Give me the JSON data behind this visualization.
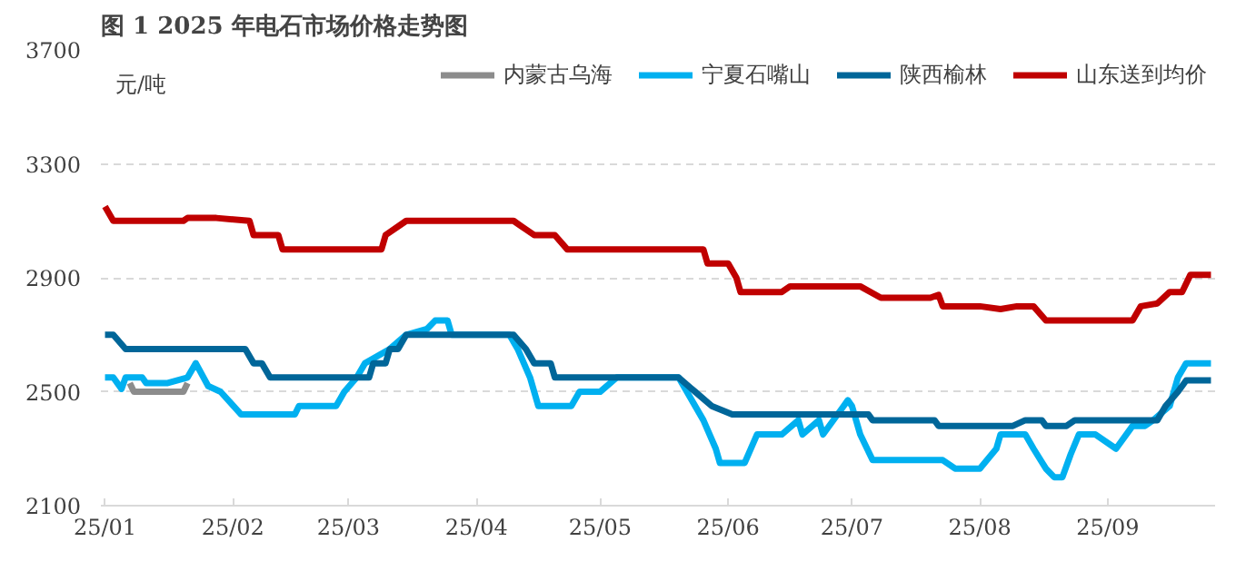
{
  "chart_data": {
    "type": "line",
    "title": "图 1 2025 年电石市场价格走势图",
    "ylabel": "元/吨",
    "xlim": [
      "2024-12-31",
      "2025-09-27"
    ],
    "xticks": [
      {
        "value": "2025-01-01",
        "label": "25/01"
      },
      {
        "value": "2025-02-01",
        "label": "25/02"
      },
      {
        "value": "2025-03-01",
        "label": "25/03"
      },
      {
        "value": "2025-04-01",
        "label": "25/04"
      },
      {
        "value": "2025-05-01",
        "label": "25/05"
      },
      {
        "value": "2025-06-01",
        "label": "25/06"
      },
      {
        "value": "2025-07-01",
        "label": "25/07"
      },
      {
        "value": "2025-08-01",
        "label": "25/08"
      },
      {
        "value": "2025-09-01",
        "label": "25/09"
      }
    ],
    "ylim": [
      2100,
      3700
    ],
    "yticks": [
      2100,
      2500,
      2900,
      3300,
      3700
    ],
    "grid": "y",
    "legend": "top",
    "line_style": "solid",
    "marker": "none",
    "series": [
      {
        "name": "内蒙古乌海",
        "color": "#8c8c8c",
        "x": [
          "2025-01-07",
          "2025-01-08",
          "2025-01-20",
          "2025-01-21"
        ],
        "values": [
          2530,
          2500,
          2500,
          2530
        ]
      },
      {
        "name": "宁夏石嘴山",
        "color": "#00b0f0",
        "x": [
          "2025-01-01",
          "2025-01-03",
          "2025-01-05",
          "2025-01-06",
          "2025-01-10",
          "2025-01-11",
          "2025-01-16",
          "2025-01-21",
          "2025-01-23",
          "2025-01-26",
          "2025-01-29",
          "2025-02-03",
          "2025-02-16",
          "2025-02-17",
          "2025-02-26",
          "2025-02-28",
          "2025-03-03",
          "2025-03-05",
          "2025-03-11",
          "2025-03-15",
          "2025-03-20",
          "2025-03-22",
          "2025-03-25",
          "2025-03-26",
          "2025-04-09",
          "2025-04-11",
          "2025-04-14",
          "2025-04-16",
          "2025-04-24",
          "2025-04-26",
          "2025-05-01",
          "2025-05-05",
          "2025-05-20",
          "2025-05-22",
          "2025-05-26",
          "2025-05-29",
          "2025-05-30",
          "2025-06-05",
          "2025-06-08",
          "2025-06-14",
          "2025-06-18",
          "2025-06-19",
          "2025-06-23",
          "2025-06-24",
          "2025-06-29",
          "2025-06-30",
          "2025-07-01",
          "2025-07-03",
          "2025-07-06",
          "2025-07-23",
          "2025-07-26",
          "2025-08-01",
          "2025-08-05",
          "2025-08-06",
          "2025-08-12",
          "2025-08-14",
          "2025-08-17",
          "2025-08-19",
          "2025-08-21",
          "2025-08-23",
          "2025-08-25",
          "2025-08-29",
          "2025-09-03",
          "2025-09-07",
          "2025-09-10",
          "2025-09-12",
          "2025-09-16",
          "2025-09-18",
          "2025-09-20",
          "2025-09-26"
        ],
        "values": [
          2550,
          2550,
          2510,
          2550,
          2550,
          2530,
          2530,
          2550,
          2600,
          2520,
          2500,
          2420,
          2420,
          2450,
          2450,
          2500,
          2550,
          2600,
          2650,
          2700,
          2720,
          2750,
          2750,
          2700,
          2700,
          2650,
          2550,
          2450,
          2450,
          2500,
          2500,
          2550,
          2550,
          2500,
          2400,
          2300,
          2250,
          2250,
          2350,
          2350,
          2400,
          2350,
          2400,
          2350,
          2450,
          2470,
          2450,
          2350,
          2260,
          2260,
          2230,
          2230,
          2300,
          2350,
          2350,
          2300,
          2230,
          2200,
          2200,
          2280,
          2350,
          2350,
          2300,
          2380,
          2380,
          2400,
          2450,
          2550,
          2600,
          2600
        ]
      },
      {
        "name": "陕西榆林",
        "color": "#006699",
        "x": [
          "2025-01-01",
          "2025-01-03",
          "2025-01-06",
          "2025-02-04",
          "2025-02-06",
          "2025-02-08",
          "2025-02-10",
          "2025-03-06",
          "2025-03-07",
          "2025-03-10",
          "2025-03-11",
          "2025-03-13",
          "2025-03-15",
          "2025-04-10",
          "2025-04-13",
          "2025-04-15",
          "2025-04-19",
          "2025-04-20",
          "2025-05-20",
          "2025-05-24",
          "2025-05-28",
          "2025-06-02",
          "2025-07-05",
          "2025-07-06",
          "2025-07-21",
          "2025-07-22",
          "2025-08-09",
          "2025-08-12",
          "2025-08-16",
          "2025-08-17",
          "2025-08-22",
          "2025-08-24",
          "2025-09-13",
          "2025-09-15",
          "2025-09-18",
          "2025-09-20",
          "2025-09-26"
        ],
        "values": [
          2700,
          2700,
          2650,
          2650,
          2600,
          2600,
          2550,
          2550,
          2600,
          2600,
          2650,
          2650,
          2700,
          2700,
          2650,
          2600,
          2600,
          2550,
          2550,
          2500,
          2450,
          2420,
          2420,
          2400,
          2400,
          2380,
          2380,
          2400,
          2400,
          2380,
          2380,
          2400,
          2400,
          2450,
          2500,
          2540,
          2540
        ]
      },
      {
        "name": "山东送到均价",
        "color": "#c00000",
        "x": [
          "2025-01-01",
          "2025-01-03",
          "2025-01-20",
          "2025-01-21",
          "2025-01-28",
          "2025-02-05",
          "2025-02-06",
          "2025-02-12",
          "2025-02-13",
          "2025-03-09",
          "2025-03-10",
          "2025-03-15",
          "2025-04-10",
          "2025-04-12",
          "2025-04-15",
          "2025-04-20",
          "2025-04-23",
          "2025-05-26",
          "2025-05-27",
          "2025-06-01",
          "2025-06-03",
          "2025-06-04",
          "2025-06-14",
          "2025-06-16",
          "2025-07-03",
          "2025-07-08",
          "2025-07-20",
          "2025-07-22",
          "2025-07-23",
          "2025-08-01",
          "2025-08-06",
          "2025-08-10",
          "2025-08-14",
          "2025-08-17",
          "2025-09-07",
          "2025-09-09",
          "2025-09-13",
          "2025-09-16",
          "2025-09-19",
          "2025-09-21",
          "2025-09-26"
        ],
        "values": [
          3150,
          3100,
          3100,
          3110,
          3110,
          3100,
          3050,
          3050,
          3000,
          3000,
          3050,
          3100,
          3100,
          3080,
          3050,
          3050,
          3000,
          3000,
          2950,
          2950,
          2900,
          2850,
          2850,
          2870,
          2870,
          2830,
          2830,
          2840,
          2800,
          2800,
          2790,
          2800,
          2800,
          2750,
          2750,
          2800,
          2810,
          2850,
          2850,
          2910,
          2910
        ]
      }
    ]
  }
}
